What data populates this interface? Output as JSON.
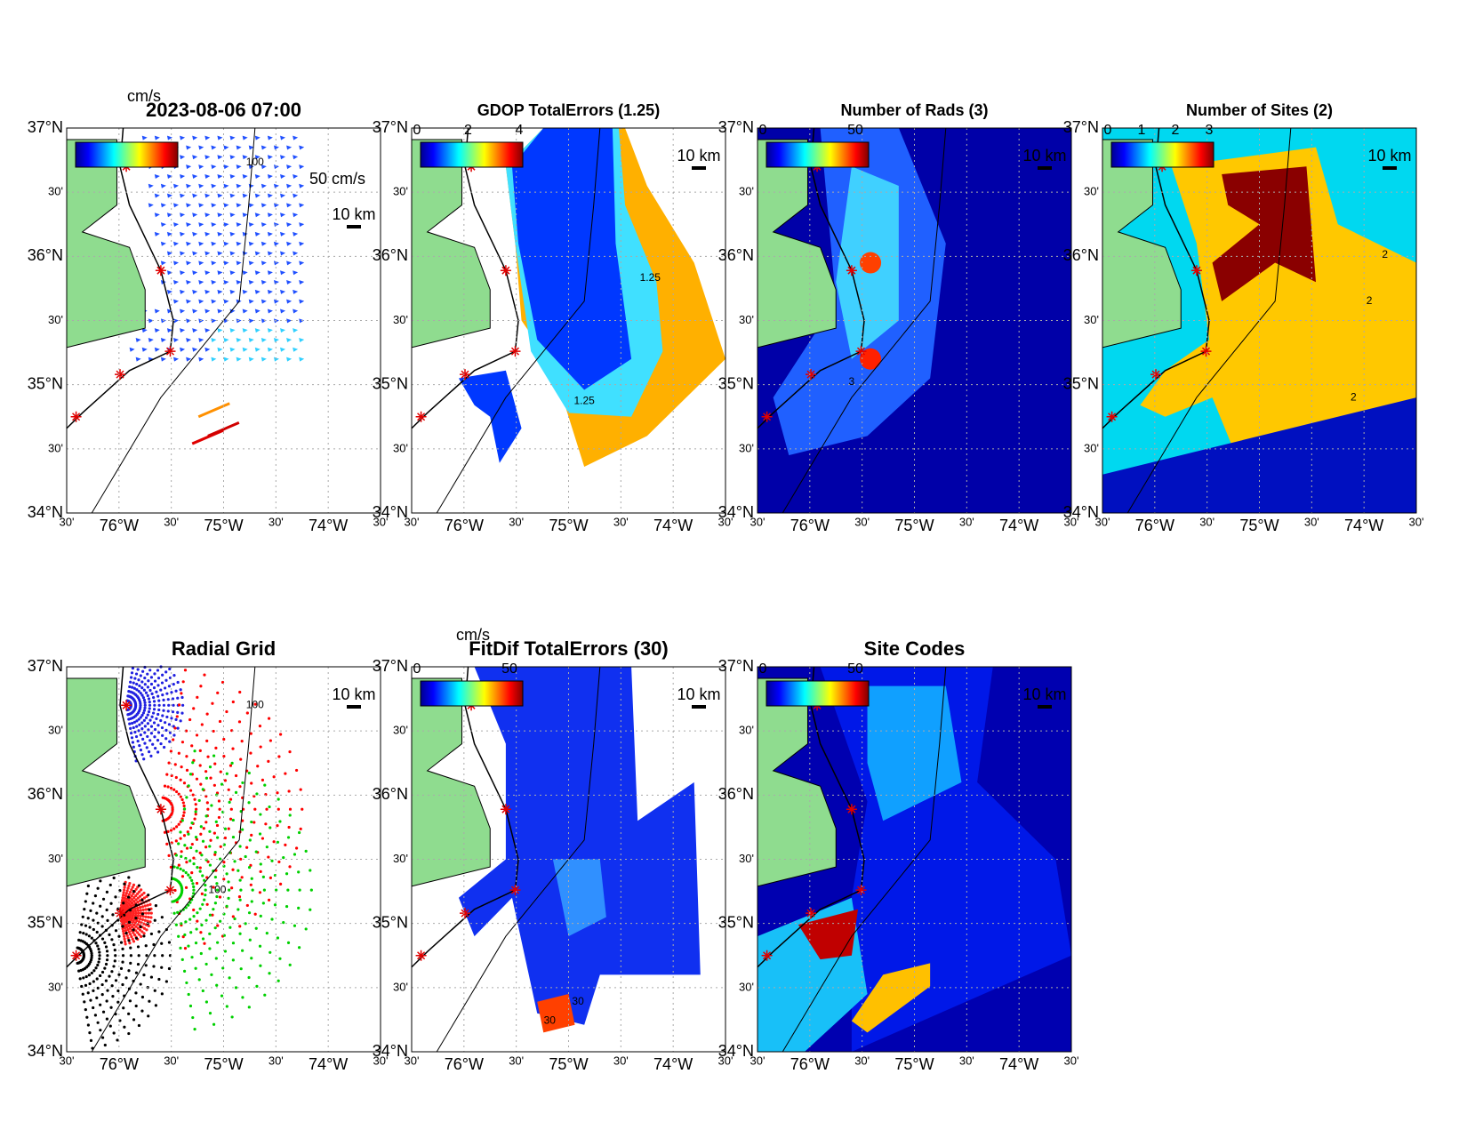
{
  "lat_labels": [
    "37°N",
    "30'",
    "36°N",
    "30'",
    "35°N",
    "30'",
    "34°N"
  ],
  "lon_labels": [
    "30'",
    "76°W",
    "30'",
    "75°W",
    "30'",
    "74°W",
    "30'"
  ],
  "panels": [
    {
      "title": "2023-08-06 07:00",
      "unit": "cm/s",
      "colorbar_ticks": [],
      "vector_scale": "50 cm/s",
      "scale_bar": "10 km",
      "contour_labels": [
        "100"
      ]
    },
    {
      "title": "GDOP TotalErrors (1.25)",
      "colorbar_ticks": [
        "0",
        "2",
        "4"
      ],
      "scale_bar": "10 km",
      "contour_labels": [
        "1.25",
        "1.25"
      ]
    },
    {
      "title": "Number of Rads (3)",
      "colorbar_ticks": [
        "0",
        "50"
      ],
      "scale_bar": "10 km",
      "contour_labels": [
        "3"
      ]
    },
    {
      "title": "Number of Sites (2)",
      "colorbar_ticks": [
        "0",
        "1",
        "2",
        "3"
      ],
      "scale_bar": "10 km",
      "contour_labels": [
        "2",
        "2",
        "2"
      ]
    },
    {
      "title": "Radial Grid",
      "colorbar_ticks": [],
      "scale_bar": "10 km",
      "contour_labels": [
        "100",
        "100"
      ]
    },
    {
      "title": "FitDif TotalErrors (30)",
      "unit": "cm/s",
      "colorbar_ticks": [
        "0",
        "50"
      ],
      "scale_bar": "10 km",
      "contour_labels": [
        "30",
        "30"
      ]
    },
    {
      "title": "Site Codes",
      "colorbar_ticks": [
        "0",
        "50"
      ],
      "scale_bar": "10 km",
      "contour_labels": []
    }
  ]
}
